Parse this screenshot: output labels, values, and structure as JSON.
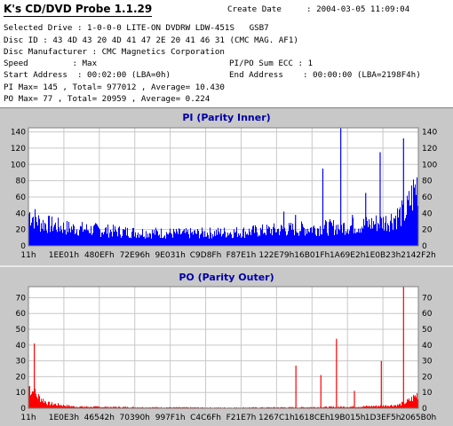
{
  "app": {
    "title": "K's CD/DVD Probe 1.1.29"
  },
  "info": {
    "create_date_label": "Create Date",
    "create_date_value": ": 2004-03-05 11:09:04",
    "selected_drive": "Selected Drive : 1-0-0-0 LITE-ON DVDRW LDW-451S   GSB7",
    "disc_id": "Disc ID : 43 4D 43 20 4D 41 47 2E 20 41 46 31 (CMC MAG. AF1)",
    "disc_manufacturer": "Disc Manufacturer : CMC Magnetics Corporation",
    "speed": "Speed         : Max",
    "pipo_sum_ecc": "PI/PO Sum ECC : 1",
    "start_address": "Start Address  : 00:02:00 (LBA=0h)",
    "end_address": "End Address    : 00:00:00 (LBA=2198F4h)",
    "pi_stats": "PI Max= 145 , Total= 977012 , Average= 10.430",
    "po_stats": "PO Max= 77 , Total= 20959 , Average= 0.224"
  },
  "colors": {
    "pi_bars": "#0000ff",
    "po_bars": "#ff0000",
    "grid": "#c8c8c8",
    "title_text": "#0000aa"
  },
  "chart_data": [
    {
      "type": "bar",
      "title": "PI (Parity Inner)",
      "ylim": [
        0,
        145
      ],
      "yticks": [
        0,
        20,
        40,
        60,
        80,
        100,
        120,
        140
      ],
      "xticks": [
        "11h",
        "1EE01h",
        "480EFh",
        "72E96h",
        "9E031h",
        "C9D8Fh",
        "F87E1h",
        "122E79h",
        "16B01Fh",
        "1A69E2h",
        "1E0B23h",
        "2142F2h"
      ],
      "grid": true,
      "baseline_profile": [
        [
          0,
          40
        ],
        [
          0.03,
          28
        ],
        [
          0.1,
          22
        ],
        [
          0.25,
          17
        ],
        [
          0.4,
          15
        ],
        [
          0.55,
          17
        ],
        [
          0.65,
          20
        ],
        [
          0.75,
          22
        ],
        [
          0.85,
          25
        ],
        [
          0.92,
          30
        ],
        [
          0.97,
          42
        ],
        [
          1.0,
          78
        ]
      ],
      "spikes": [
        {
          "pos": 0.655,
          "value": 42
        },
        {
          "pos": 0.685,
          "value": 38
        },
        {
          "pos": 0.755,
          "value": 95
        },
        {
          "pos": 0.801,
          "value": 145
        },
        {
          "pos": 0.831,
          "value": 38
        },
        {
          "pos": 0.865,
          "value": 65
        },
        {
          "pos": 0.902,
          "value": 115
        },
        {
          "pos": 0.962,
          "value": 132
        }
      ]
    },
    {
      "type": "bar",
      "title": "PO (Parity Outer)",
      "ylim": [
        0,
        77
      ],
      "yticks": [
        0,
        10,
        20,
        30,
        40,
        50,
        60,
        70
      ],
      "xticks": [
        "11h",
        "1E0E3h",
        "46542h",
        "70390h",
        "997F1h",
        "C4C6Fh",
        "F21E7h",
        "1267C1h",
        "1618CEh",
        "19B015h",
        "1D3EF5h",
        "2065B0h"
      ],
      "grid": true,
      "baseline_profile": [
        [
          0,
          14
        ],
        [
          0.02,
          8
        ],
        [
          0.05,
          3
        ],
        [
          0.12,
          1
        ],
        [
          0.3,
          0.6
        ],
        [
          0.5,
          0.4
        ],
        [
          0.7,
          0.6
        ],
        [
          0.85,
          1
        ],
        [
          0.95,
          2
        ],
        [
          0.98,
          5
        ],
        [
          1.0,
          9
        ]
      ],
      "spikes": [
        {
          "pos": 0.015,
          "value": 41
        },
        {
          "pos": 0.686,
          "value": 27
        },
        {
          "pos": 0.75,
          "value": 21
        },
        {
          "pos": 0.79,
          "value": 44
        },
        {
          "pos": 0.836,
          "value": 11
        },
        {
          "pos": 0.905,
          "value": 30
        },
        {
          "pos": 0.962,
          "value": 77
        }
      ]
    }
  ]
}
